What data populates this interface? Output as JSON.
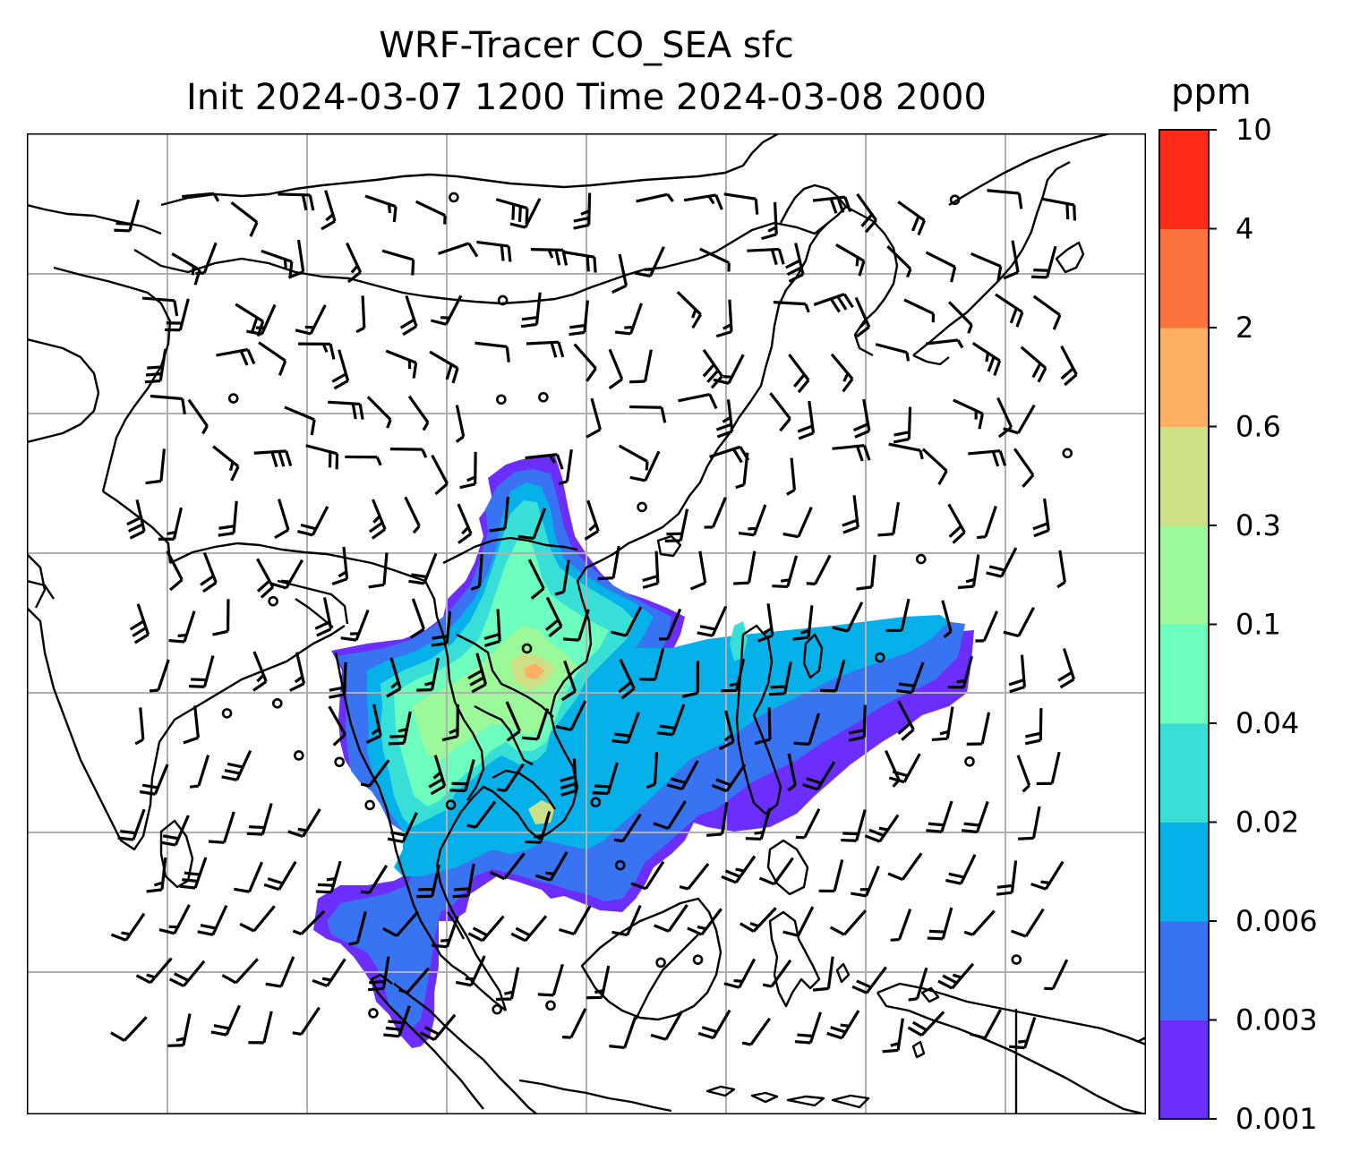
{
  "title": {
    "line1": "WRF-Tracer CO_SEA sfc",
    "line2": "Init 2024-03-07 1200 Time 2024-03-08 2000"
  },
  "colorbar": {
    "unit": "ppm",
    "levels": [
      {
        "label": "0.001",
        "color": "#6b2efc"
      },
      {
        "label": "0.003",
        "color": "#3874f2"
      },
      {
        "label": "0.006",
        "color": "#06b1ea"
      },
      {
        "label": "0.02",
        "color": "#38dfd6"
      },
      {
        "label": "0.04",
        "color": "#6dfdbf"
      },
      {
        "label": "0.1",
        "color": "#9cf99a"
      },
      {
        "label": "0.3",
        "color": "#cde085"
      },
      {
        "label": "0.6",
        "color": "#fdb061"
      },
      {
        "label": "2",
        "color": "#fd7340"
      },
      {
        "label": "4",
        "color": "#fe2b18"
      },
      {
        "label": "10",
        "color": null
      }
    ]
  },
  "map": {
    "style": {
      "coast": "#000000",
      "grid": "#b0b0b0",
      "barb": "#000000"
    },
    "gridlines": "on",
    "layers": [
      "coastlines",
      "tracer-concentration-fill",
      "wind-barbs"
    ]
  }
}
